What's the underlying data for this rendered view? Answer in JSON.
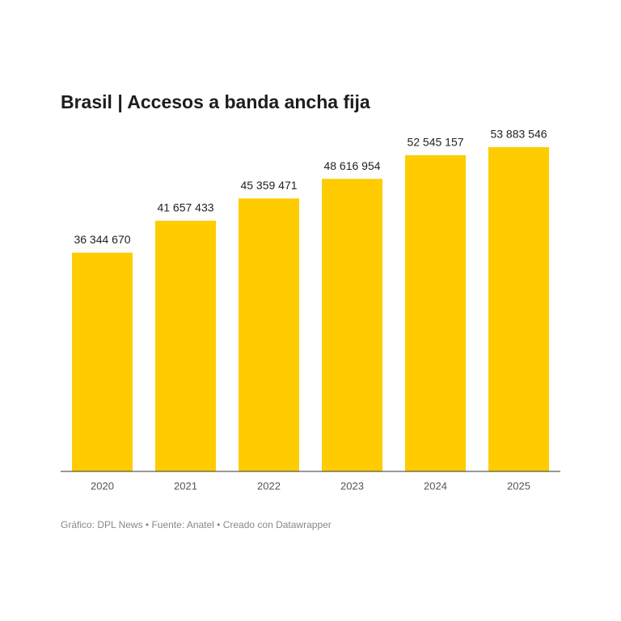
{
  "chart_data": {
    "type": "bar",
    "title": "Brasil | Accesos a banda ancha fija",
    "categories": [
      "2020",
      "2021",
      "2022",
      "2023",
      "2024",
      "2025"
    ],
    "values": [
      36344670,
      41657433,
      45359471,
      48616954,
      52545157,
      53883546
    ],
    "value_labels": [
      "36 344 670",
      "41 657 433",
      "45 359 471",
      "48 616 954",
      "52 545 157",
      "53 883 546"
    ],
    "color": "#fecc00",
    "ylim": [
      0,
      53883546
    ],
    "source": "Gráfico: DPL News • Fuente: Anatel • Creado con Datawrapper"
  }
}
